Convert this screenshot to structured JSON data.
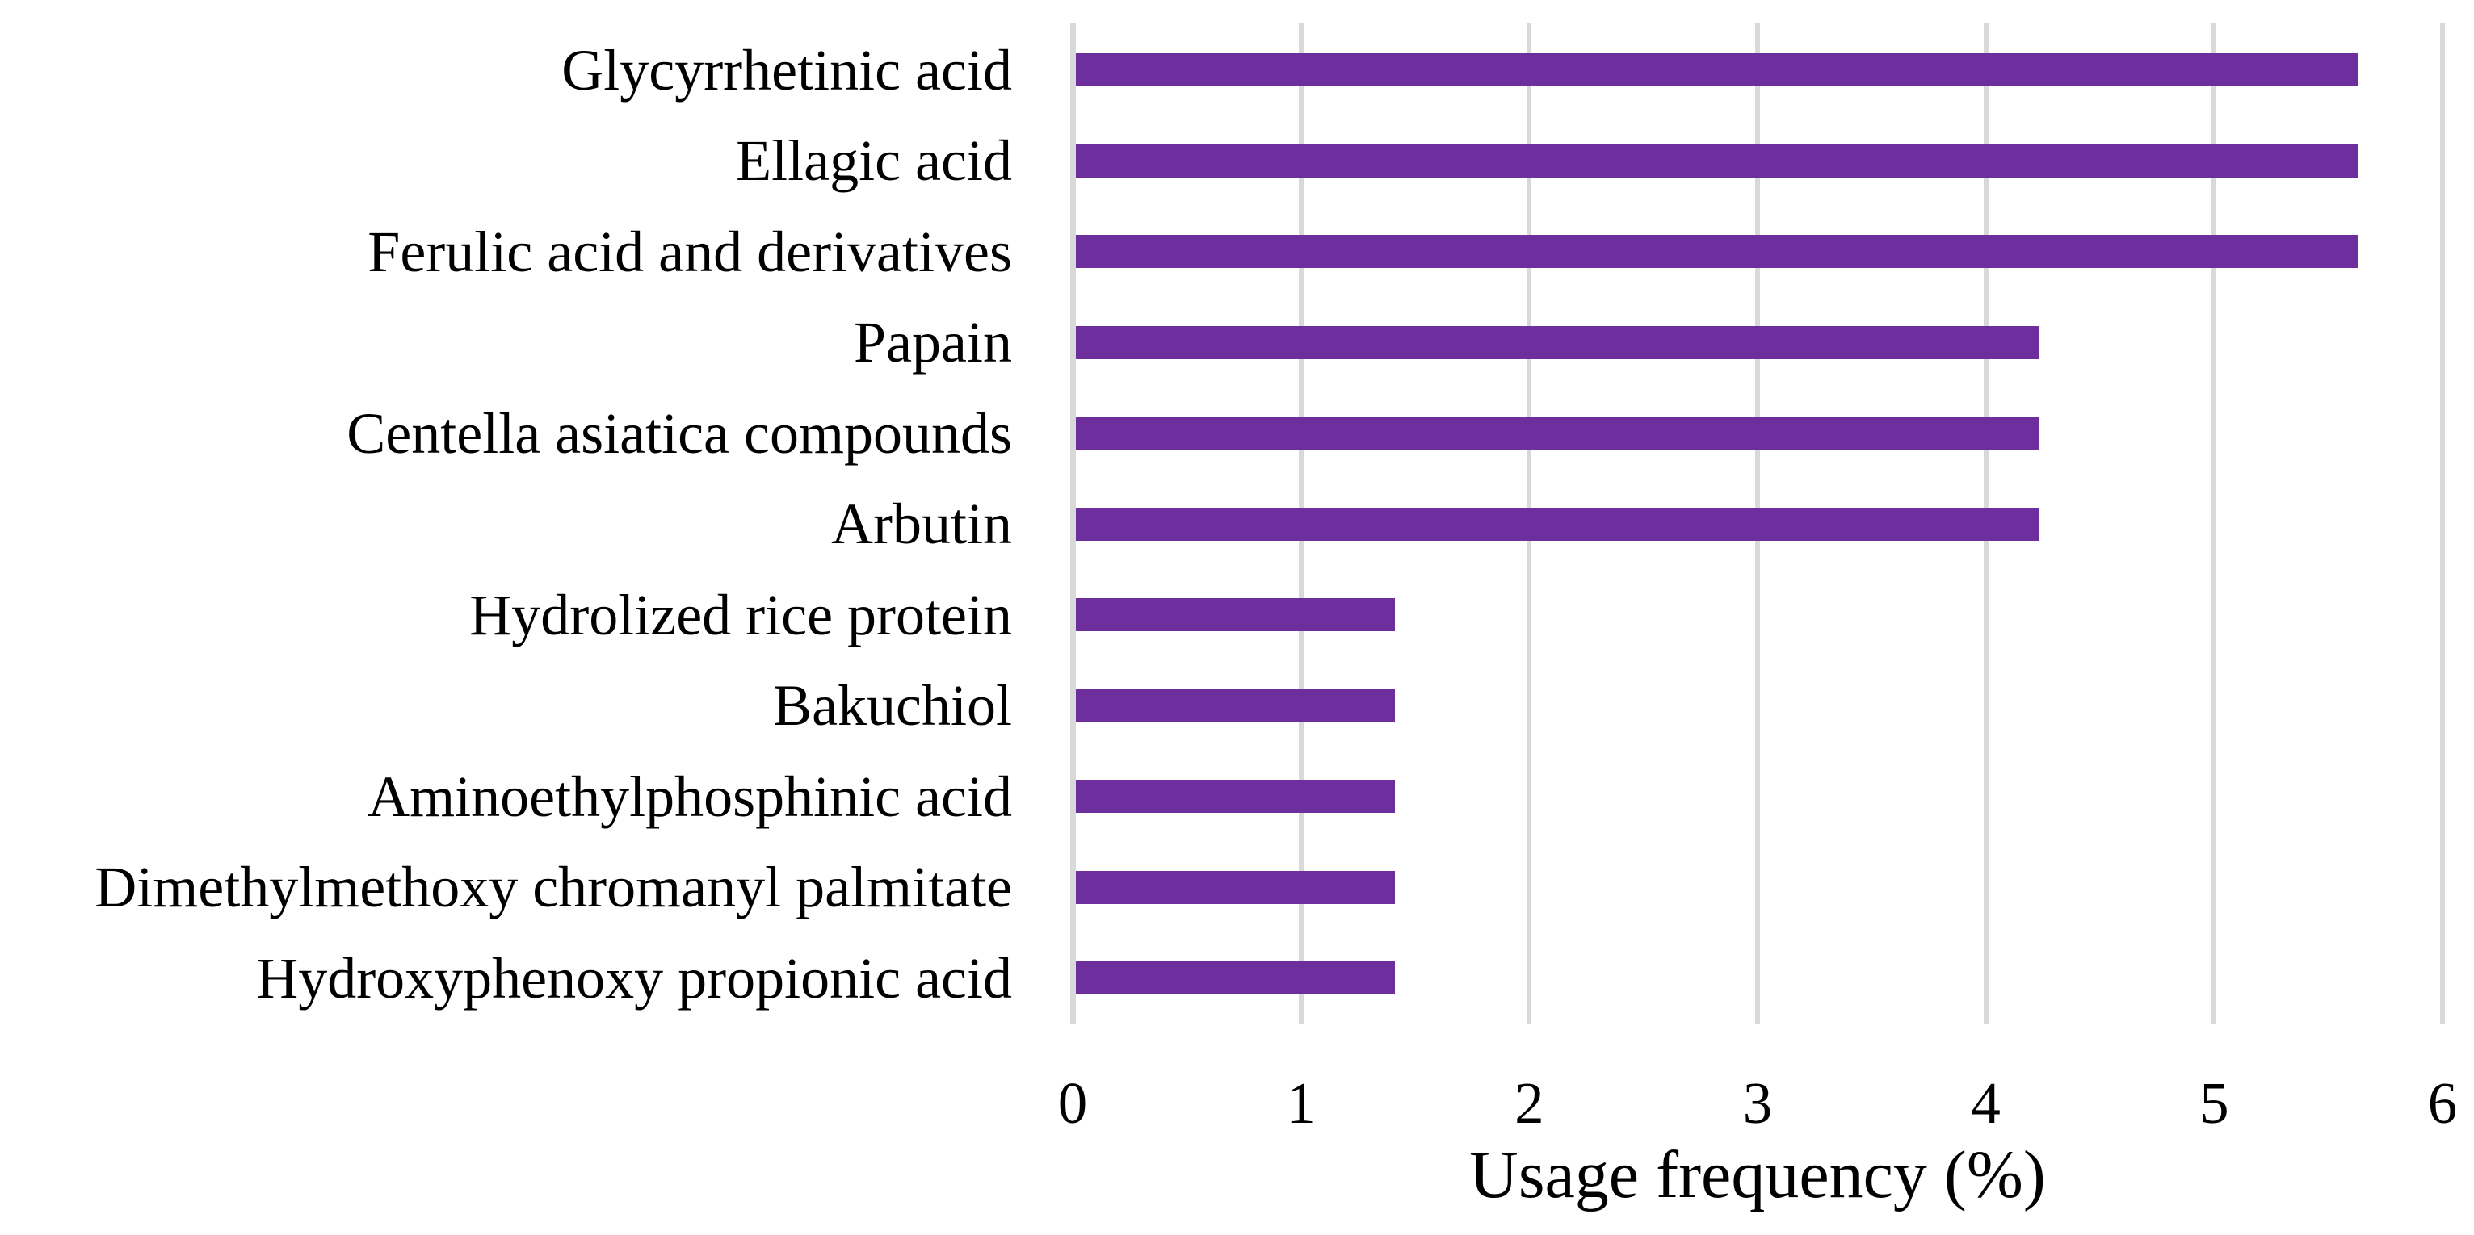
{
  "chart_data": {
    "type": "bar",
    "orientation": "horizontal",
    "title": "",
    "xlabel": "Usage frequency (%)",
    "ylabel": "",
    "categories": [
      "Glycyrrhetinic acid",
      "Ellagic acid",
      "Ferulic acid and derivatives",
      "Papain",
      "Centella asiatica compounds",
      "Arbutin",
      "Hydrolized rice protein",
      "Bakuchiol",
      "Aminoethylphosphinic acid",
      "Dimethylmethoxy chromanyl palmitate",
      "Hydroxyphenoxy propionic acid"
    ],
    "values": [
      5.63,
      5.63,
      5.63,
      4.23,
      4.23,
      4.23,
      1.41,
      1.41,
      1.41,
      1.41,
      1.41
    ],
    "xlim": [
      0,
      6
    ],
    "xticks": [
      0,
      1,
      2,
      3,
      4,
      5,
      6
    ],
    "xtick_labels": [
      "0",
      "1",
      "2",
      "3",
      "4",
      "5",
      "6"
    ],
    "grid": true,
    "legend": false,
    "colors": {
      "bar": "#6E2F9E",
      "gridline": "#D9D9D9",
      "axis_line": "#D9D9D9",
      "text": "#000000",
      "background": "#FFFFFF"
    }
  }
}
